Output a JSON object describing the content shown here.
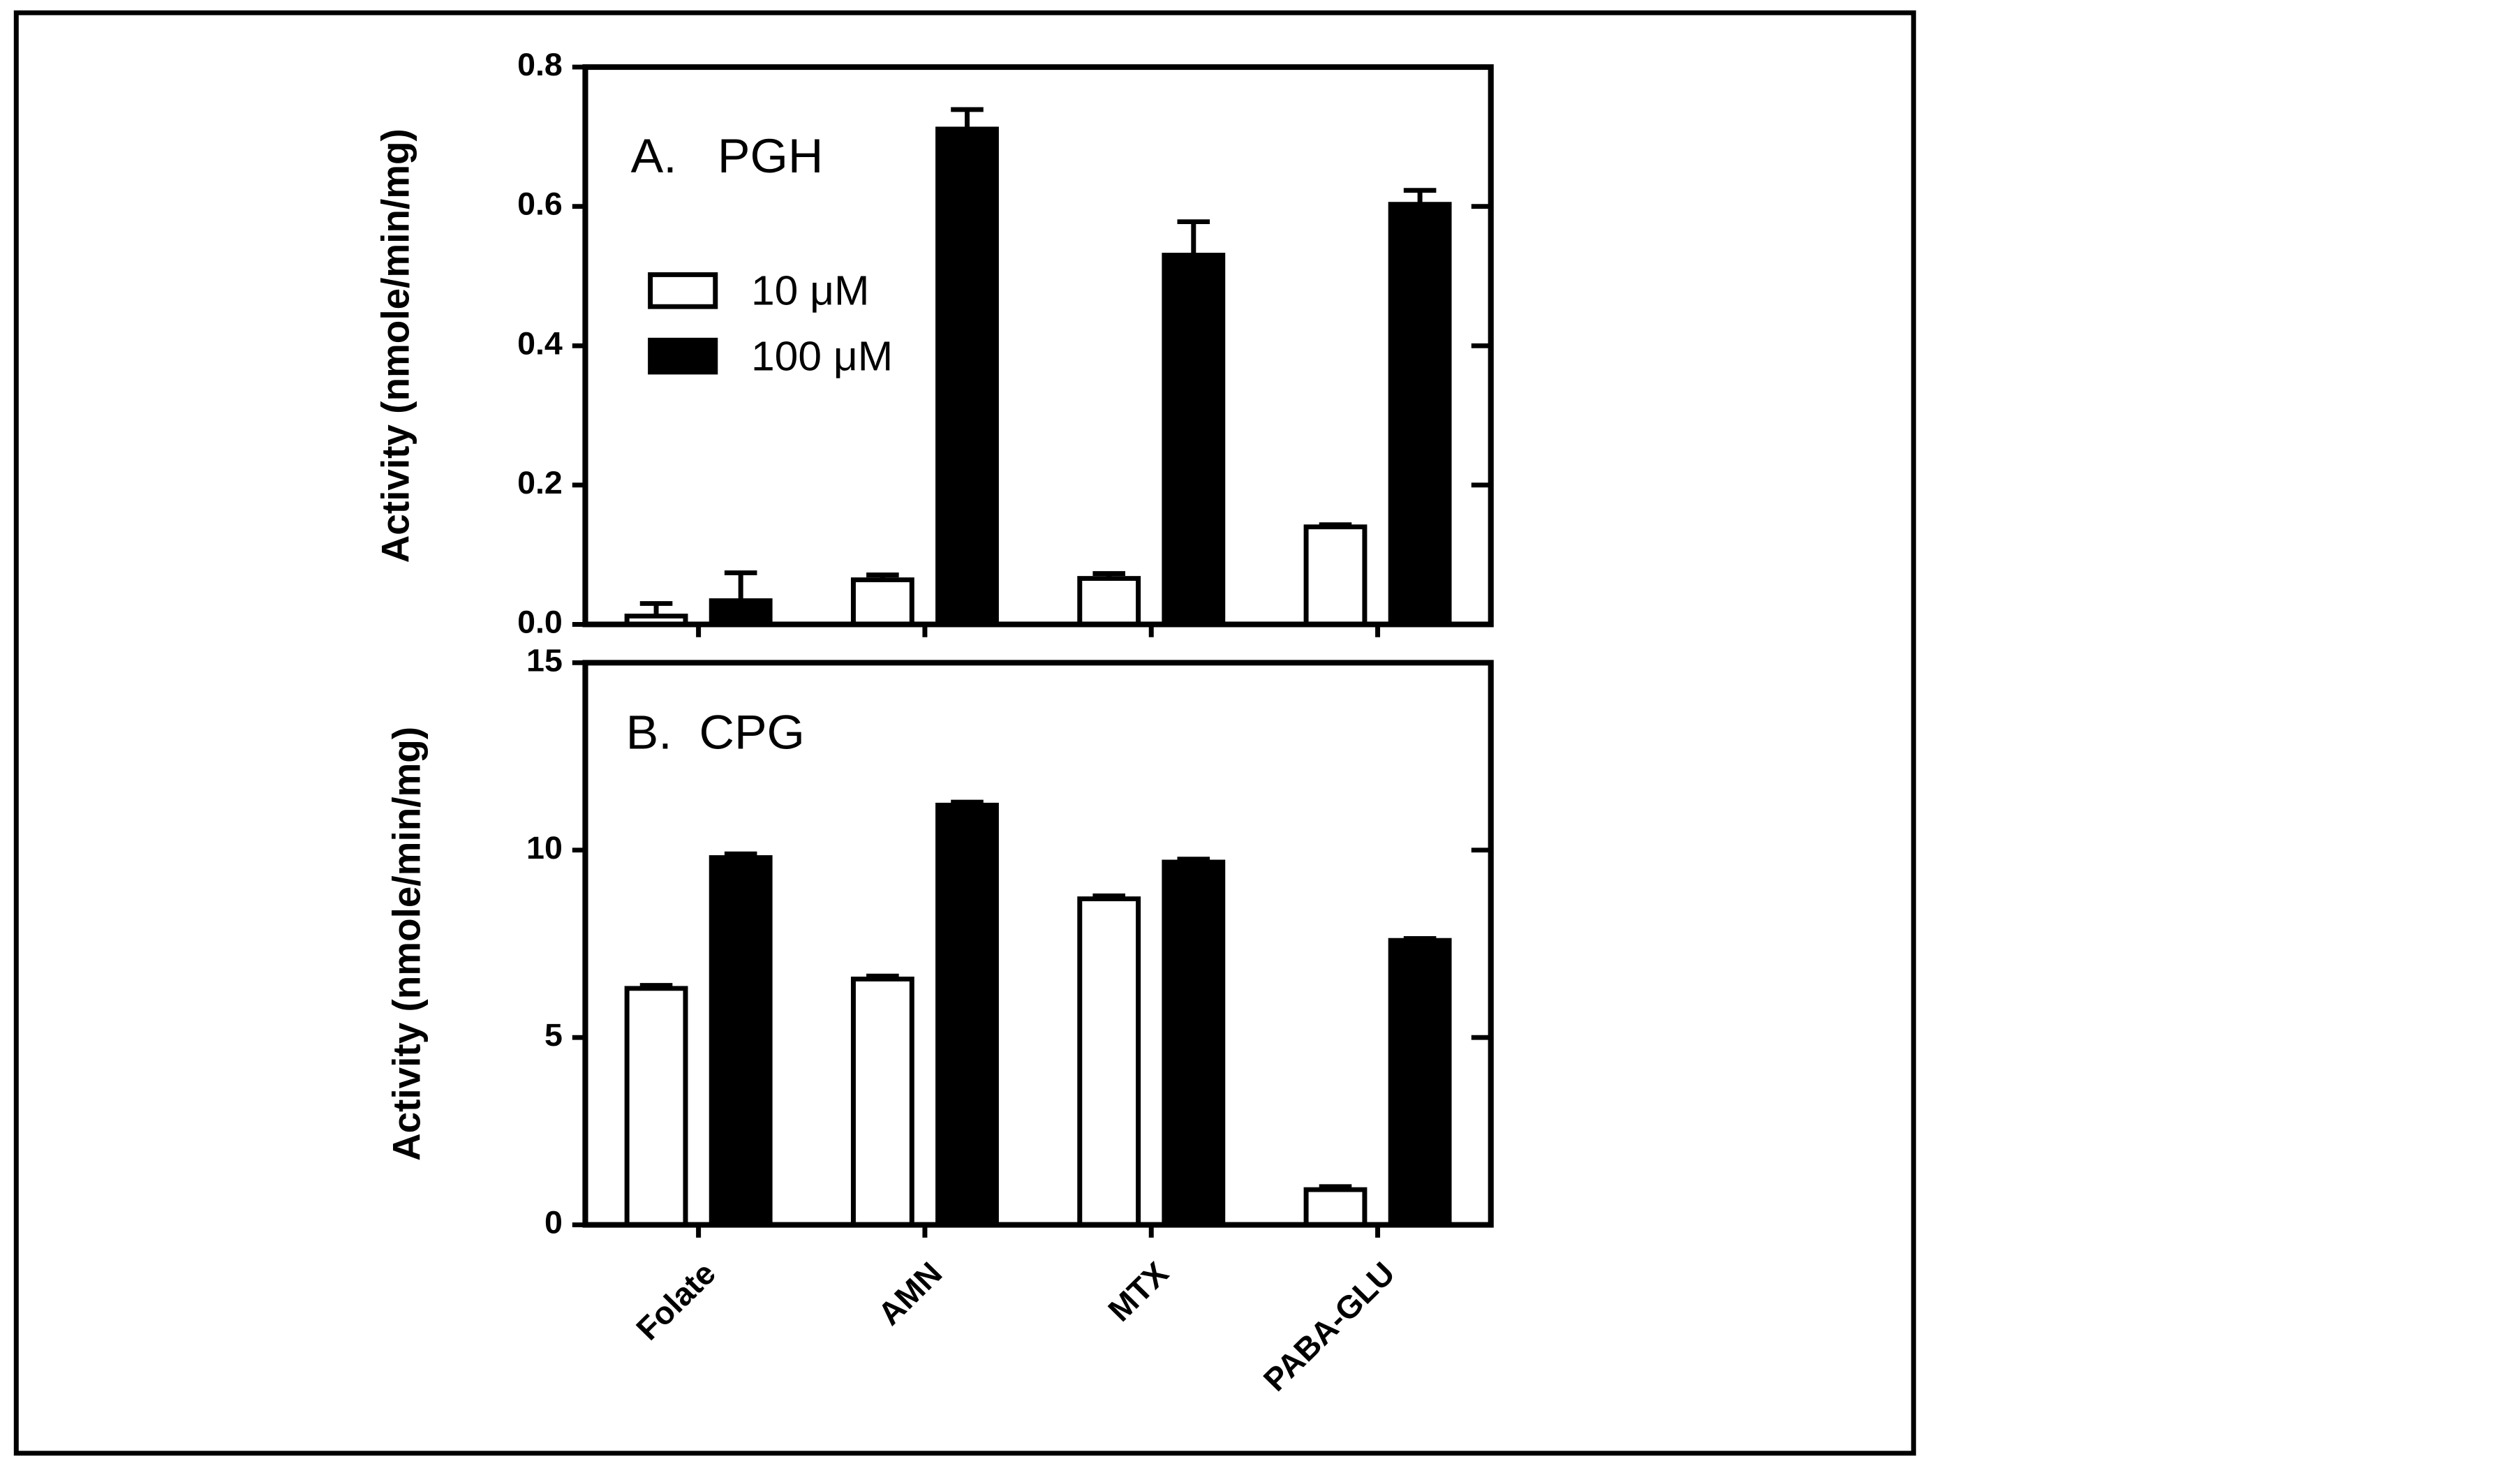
{
  "chart_data": [
    {
      "type": "bar",
      "annotation": "A.   PGH",
      "y_label": "Activity  (nmole/min/mg)",
      "categories": [
        null,
        null,
        null,
        null
      ],
      "series": [
        {
          "name": "10 μM",
          "color": "#ffffff",
          "values": [
            0.012,
            0.064,
            0.066,
            0.14
          ],
          "errors": [
            0.018,
            0.007,
            0.007,
            0.003
          ]
        },
        {
          "name": "100 μM",
          "color": "#000000",
          "values": [
            0.034,
            0.711,
            0.53,
            0.603
          ],
          "errors": [
            0.04,
            0.028,
            0.048,
            0.02
          ]
        }
      ],
      "ylim": [
        0,
        0.8
      ],
      "yticks": [
        {
          "value": 0,
          "label": "0.0"
        },
        0.2,
        0.4,
        0.6,
        0.8
      ],
      "legend": "upper left"
    },
    {
      "type": "bar",
      "annotation": "B.  CPG",
      "y_label": "Activity  (nmole/min/mg)",
      "categories": [
        "Folate",
        "AMN",
        "MTX",
        "PABA-GLU"
      ],
      "series": [
        {
          "color": "#ffffff",
          "values": [
            6.31,
            6.56,
            8.7,
            0.94
          ],
          "errors": [
            0.08,
            0.08,
            0.08,
            0.08
          ]
        },
        {
          "color": "#000000",
          "values": [
            9.8,
            11.2,
            9.68,
            7.59
          ],
          "errors": [
            0.1,
            0.08,
            0.08,
            0.05
          ]
        }
      ],
      "ylim": [
        0,
        15
      ],
      "yticks": [
        0,
        5,
        10,
        15
      ]
    }
  ]
}
